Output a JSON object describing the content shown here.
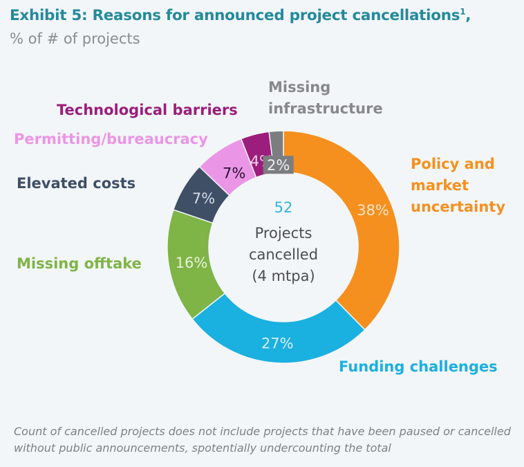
{
  "header": {
    "title": "Exhibit 5: Reasons for announced project cancellations",
    "title_sup": "1",
    "title_suffix": ",",
    "subtitle": "% of # of projects"
  },
  "chart_data": {
    "type": "pie",
    "donut": true,
    "title": "Exhibit 5: Reasons for announced project cancellations",
    "subtitle": "% of # of projects",
    "unit": "%",
    "center": {
      "value": "52",
      "lines": [
        "Projects",
        "cancelled",
        "(4 mtpa)"
      ]
    },
    "slices": [
      {
        "name": "Policy and market uncertainty",
        "label_lines": [
          "Policy and",
          "market",
          "uncertainty"
        ],
        "value": 38,
        "label": "38%",
        "color": "#f5901e",
        "label_color": "#f5901e",
        "pct_color": "#fde3c4"
      },
      {
        "name": "Funding challenges",
        "label_lines": [
          "Funding challenges"
        ],
        "value": 27,
        "label": "27%",
        "color": "#1ab0e0",
        "label_color": "#1ab0e0",
        "pct_color": "#d6f1fb"
      },
      {
        "name": "Missing offtake",
        "label_lines": [
          "Missing offtake"
        ],
        "value": 16,
        "label": "16%",
        "color": "#7fb446",
        "label_color": "#7fb446",
        "pct_color": "#e6f2d8"
      },
      {
        "name": "Elevated costs",
        "label_lines": [
          "Elevated costs"
        ],
        "value": 7,
        "label": "7%",
        "color": "#3e4f66",
        "label_color": "#3e4f66",
        "pct_color": "#d7dde6"
      },
      {
        "name": "Permitting/bureaucracy",
        "label_lines": [
          "Permitting/bureaucracy"
        ],
        "value": 7,
        "label": "7%",
        "color": "#eb95e6",
        "label_color": "#eb95e6",
        "pct_color": "#2a1030"
      },
      {
        "name": "Technological barriers",
        "label_lines": [
          "Technological barriers"
        ],
        "value": 4,
        "label": "4%",
        "color": "#9c1d7b",
        "label_color": "#9c1d7b",
        "pct_color": "#f2d0ea"
      },
      {
        "name": "Missing infrastructure",
        "label_lines": [
          "Missing",
          "infrastructure"
        ],
        "value": 2,
        "label": "2%",
        "color": "#7b7d80",
        "label_color": "#86888b",
        "pct_color": "#f0f0f0"
      }
    ]
  },
  "footnote": "Count of cancelled projects does not include projects that have been paused or cancelled without public announcements, spotentially undercounting the total"
}
